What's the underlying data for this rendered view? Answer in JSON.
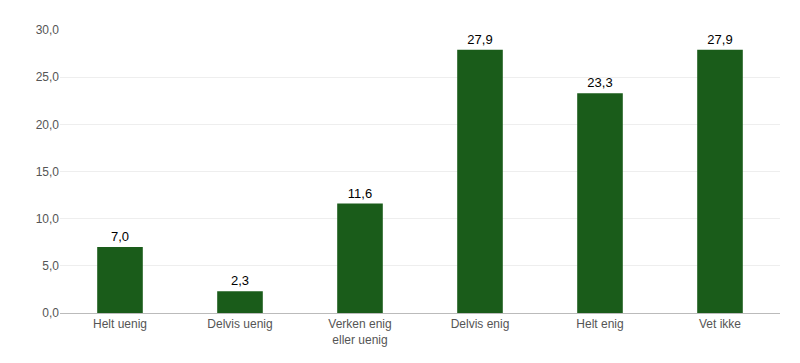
{
  "chart_data": {
    "type": "bar",
    "categories": [
      "Helt uenig",
      "Delvis uenig",
      "Verken enig\neller uenig",
      "Delvis enig",
      "Helt enig",
      "Vet ikke"
    ],
    "values": [
      7.0,
      2.3,
      11.6,
      27.9,
      23.3,
      27.9
    ],
    "value_labels": [
      "7,0",
      "2,3",
      "11,6",
      "27,9",
      "23,3",
      "27,9"
    ],
    "data_labels": true,
    "color": "#1a5c1a",
    "ylim": [
      0,
      30
    ],
    "yticks": [
      {
        "value": 0,
        "label": "0,0"
      },
      {
        "value": 5,
        "label": "5,0"
      },
      {
        "value": 10,
        "label": "10,0"
      },
      {
        "value": 15,
        "label": "15,0"
      },
      {
        "value": 20,
        "label": "20,0"
      },
      {
        "value": 25,
        "label": "25,0"
      },
      {
        "value": 30,
        "label": "30,0"
      }
    ],
    "grid": true
  }
}
